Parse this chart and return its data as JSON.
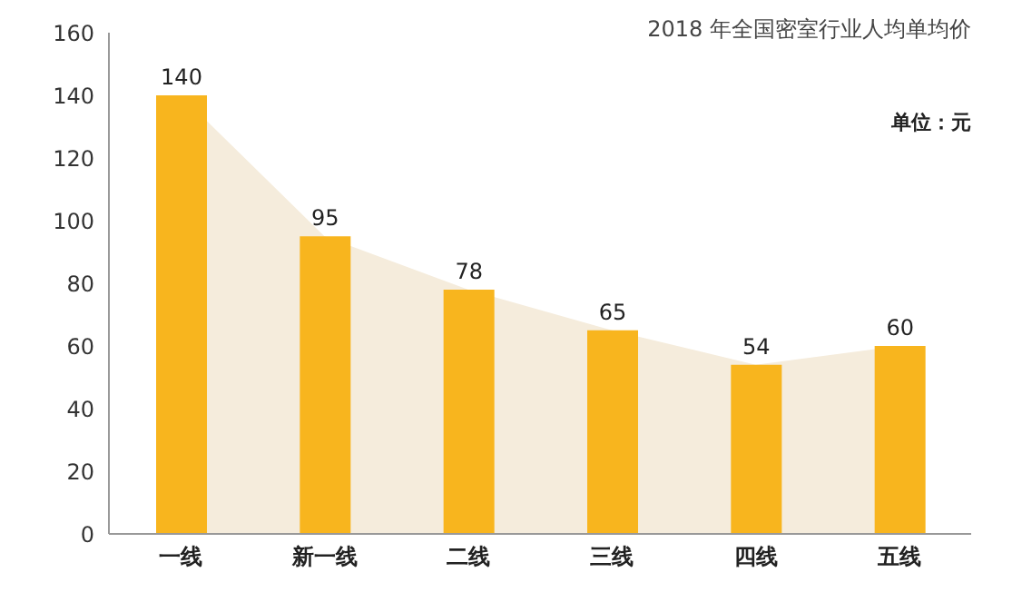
{
  "chart_data": {
    "type": "bar",
    "title": "2018 年全国密室行业人均单均价",
    "annotations": [
      "单位：元"
    ],
    "categories": [
      "一线",
      "新一线",
      "二线",
      "三线",
      "四线",
      "五线"
    ],
    "series": [
      {
        "type": "area",
        "color": "#f5ecdc",
        "values": [
          140,
          95,
          78,
          65,
          54,
          60
        ]
      },
      {
        "color": "#f8b51e",
        "values": [
          140,
          95,
          78,
          65,
          54,
          60
        ],
        "value_labels": [
          "140",
          "95",
          "78",
          "65",
          "54",
          "60"
        ]
      }
    ],
    "ylim": [
      0,
      160
    ],
    "yticks": [
      0,
      20,
      40,
      60,
      80,
      100,
      120,
      140,
      160
    ],
    "grid": false,
    "legend": false
  }
}
